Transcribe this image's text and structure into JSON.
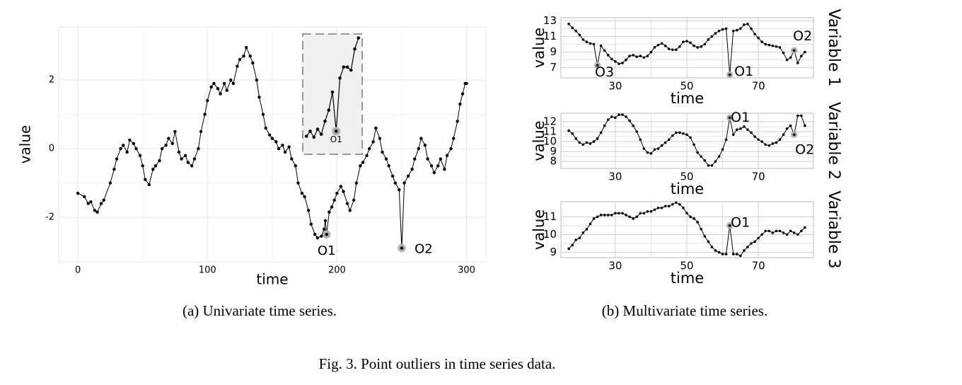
{
  "caption": "Fig. 3.  Point outliers in time series data.",
  "subcaptions": [
    "(a) Univariate time series.",
    "(b) Multivariate time series."
  ],
  "chart_data": [
    {
      "type": "line",
      "x_label": "time",
      "y_label": "value",
      "color": "#000000",
      "outlier_color": "#b0b0b0",
      "xlim": [
        -14.8,
        315
      ],
      "ylim": [
        -3.3,
        3.55
      ],
      "xticks": [
        0,
        100,
        200,
        300
      ],
      "yticks": [
        -2,
        0,
        2
      ],
      "grid": true,
      "x": [
        0,
        5,
        8,
        10,
        13,
        15,
        18,
        20,
        25,
        28,
        30,
        33,
        35,
        38,
        40,
        43,
        45,
        48,
        50,
        52,
        55,
        58,
        60,
        63,
        65,
        68,
        70,
        73,
        75,
        78,
        80,
        83,
        85,
        88,
        90,
        93,
        95,
        98,
        100,
        103,
        105,
        108,
        110,
        113,
        115,
        118,
        120,
        123,
        125,
        128,
        130,
        133,
        135,
        138,
        140,
        143,
        145,
        148,
        150,
        153,
        155,
        158,
        160,
        163,
        165,
        168,
        170,
        173,
        175,
        178,
        180,
        183,
        185,
        188,
        190,
        191,
        192,
        194,
        196,
        198,
        200,
        203,
        205,
        208,
        210,
        213,
        215,
        218,
        220,
        223,
        225,
        228,
        230,
        233,
        235,
        238,
        240,
        243,
        245,
        248,
        250,
        252,
        255,
        258,
        260,
        263,
        265,
        268,
        270,
        273,
        275,
        278,
        280,
        283,
        285,
        288,
        290,
        293,
        295,
        297,
        299,
        300
      ],
      "values": [
        -1.3,
        -1.4,
        -1.6,
        -1.55,
        -1.8,
        -1.85,
        -1.6,
        -1.5,
        -1.0,
        -0.6,
        -0.3,
        0.0,
        0.1,
        -0.1,
        0.25,
        0.15,
        0.0,
        -0.2,
        -0.5,
        -0.9,
        -1.05,
        -0.6,
        -0.5,
        -0.35,
        0.0,
        0.1,
        0.3,
        0.15,
        0.5,
        -0.1,
        -0.3,
        -0.2,
        -0.4,
        -0.5,
        -0.3,
        0.0,
        0.5,
        1.0,
        1.4,
        1.8,
        1.9,
        1.75,
        1.6,
        1.9,
        1.7,
        2.0,
        1.9,
        2.4,
        2.6,
        2.7,
        2.95,
        2.7,
        2.5,
        2.0,
        1.5,
        1.0,
        0.6,
        0.4,
        0.3,
        0.2,
        0.0,
        0.1,
        -0.1,
        0.05,
        -0.3,
        -0.5,
        -1.0,
        -1.3,
        -1.4,
        -1.8,
        -2.2,
        -2.5,
        -2.6,
        -2.55,
        -2.35,
        -2.1,
        -2.5,
        -1.85,
        -1.7,
        -1.5,
        -1.3,
        -1.1,
        -1.25,
        -1.6,
        -1.8,
        -1.5,
        -1.0,
        -0.5,
        -0.4,
        -0.2,
        0.0,
        0.2,
        0.6,
        0.3,
        -0.1,
        -0.3,
        -0.5,
        -0.8,
        -1.0,
        -1.2,
        -2.9,
        -1.0,
        -0.8,
        -0.6,
        -0.3,
        0.0,
        0.3,
        0.1,
        -0.3,
        -0.5,
        -0.7,
        -0.5,
        -0.3,
        -0.6,
        -0.2,
        0.0,
        0.3,
        0.8,
        1.3,
        1.6,
        1.9,
        1.9
      ],
      "annotations": [
        {
          "text": "O1",
          "x": 192
        },
        {
          "text": "O2",
          "x": 250
        }
      ],
      "inset": {
        "xlim": [
          184,
          200
        ],
        "ylim": [
          -2.7,
          -1.5
        ],
        "x": [
          185,
          186,
          187,
          188,
          189,
          190,
          191,
          192,
          193,
          194,
          195,
          196,
          197,
          198,
          199
        ],
        "values": [
          -2.52,
          -2.47,
          -2.53,
          -2.45,
          -2.5,
          -2.37,
          -2.26,
          -2.08,
          -2.47,
          -1.94,
          -1.83,
          -1.83,
          -1.86,
          -1.65,
          -1.54
        ],
        "annotations": [
          {
            "text": "O1",
            "x": 193
          }
        ]
      }
    },
    {
      "type": "line",
      "x_label": "time",
      "y_label": "value",
      "strip_label": "Variable 1",
      "color": "#000000",
      "outlier_color": "#b0b0b0",
      "xlim": [
        14.8,
        85.4
      ],
      "ylim": [
        5.7,
        13.4
      ],
      "xticks": [
        30,
        50,
        70
      ],
      "yticks": [
        7,
        9,
        11,
        13
      ],
      "grid": true,
      "x": [
        17,
        18,
        19,
        20,
        21,
        22,
        23,
        24,
        25,
        26,
        27,
        28,
        29,
        30,
        31,
        32,
        33,
        34,
        35,
        36,
        37,
        38,
        39,
        40,
        41,
        42,
        43,
        44,
        45,
        46,
        47,
        48,
        49,
        50,
        51,
        52,
        53,
        54,
        55,
        56,
        57,
        58,
        59,
        60,
        61,
        62,
        63,
        64,
        65,
        66,
        67,
        68,
        69,
        70,
        71,
        72,
        73,
        74,
        75,
        76,
        77,
        78,
        79,
        80,
        81,
        82,
        83
      ],
      "values": [
        12.6,
        12.1,
        11.7,
        11.2,
        10.6,
        10.3,
        10.1,
        10.0,
        7.3,
        9.8,
        9.2,
        8.6,
        8.1,
        7.8,
        7.5,
        7.6,
        8.0,
        8.5,
        8.6,
        8.4,
        8.5,
        8.3,
        8.5,
        9.0,
        9.6,
        9.9,
        10.1,
        9.8,
        9.4,
        9.3,
        9.3,
        9.7,
        10.3,
        10.4,
        10.2,
        9.8,
        9.6,
        9.7,
        10.0,
        10.6,
        11.0,
        11.4,
        11.7,
        11.9,
        12.0,
        6.1,
        11.7,
        11.8,
        12.0,
        12.5,
        12.6,
        12.0,
        11.3,
        10.8,
        10.3,
        10.0,
        9.9,
        9.8,
        9.7,
        9.6,
        8.9,
        8.0,
        8.3,
        9.2,
        7.6,
        8.5,
        9.0
      ],
      "annotations": [
        {
          "text": "O3",
          "x": 25
        },
        {
          "text": "O1",
          "x": 62
        },
        {
          "text": "O2",
          "x": 80
        }
      ]
    },
    {
      "type": "line",
      "x_label": "time",
      "y_label": "value",
      "strip_label": "Variable 2",
      "color": "#000000",
      "outlier_color": "#b0b0b0",
      "xlim": [
        14.8,
        85.4
      ],
      "ylim": [
        7.3,
        12.85
      ],
      "xticks": [
        30,
        50,
        70
      ],
      "yticks": [
        8,
        9,
        10,
        11,
        12
      ],
      "grid": true,
      "x": [
        17,
        18,
        19,
        20,
        21,
        22,
        23,
        24,
        25,
        26,
        27,
        28,
        29,
        30,
        31,
        32,
        33,
        34,
        35,
        36,
        37,
        38,
        39,
        40,
        41,
        42,
        43,
        44,
        45,
        46,
        47,
        48,
        49,
        50,
        51,
        52,
        53,
        54,
        55,
        56,
        57,
        58,
        59,
        60,
        61,
        62,
        63,
        64,
        65,
        66,
        67,
        68,
        69,
        70,
        71,
        72,
        73,
        74,
        75,
        76,
        77,
        78,
        79,
        80,
        81,
        82,
        83
      ],
      "values": [
        11.1,
        10.8,
        10.3,
        9.9,
        9.7,
        9.9,
        9.8,
        10.0,
        10.3,
        10.9,
        11.6,
        12.2,
        12.5,
        12.4,
        12.7,
        12.7,
        12.5,
        12.1,
        11.6,
        11.0,
        10.2,
        9.3,
        8.9,
        8.8,
        9.2,
        9.3,
        9.6,
        9.9,
        10.2,
        10.6,
        10.9,
        10.9,
        10.8,
        10.7,
        10.4,
        9.7,
        8.9,
        8.5,
        8.1,
        7.6,
        7.6,
        8.0,
        8.5,
        9.2,
        10.2,
        12.4,
        10.7,
        11.2,
        11.3,
        11.5,
        11.2,
        10.9,
        10.5,
        10.2,
        10.0,
        9.7,
        9.6,
        9.8,
        9.9,
        10.2,
        10.7,
        11.3,
        11.6,
        10.7,
        12.6,
        12.6,
        11.6
      ],
      "annotations": [
        {
          "text": "O1",
          "x": 62
        },
        {
          "text": "O2",
          "x": 80
        }
      ]
    },
    {
      "type": "line",
      "x_label": "time",
      "y_label": "value",
      "strip_label": "Variable 3",
      "color": "#000000",
      "outlier_color": "#b0b0b0",
      "xlim": [
        14.8,
        85.4
      ],
      "ylim": [
        8.7,
        11.85
      ],
      "xticks": [
        30,
        50,
        70
      ],
      "yticks": [
        9,
        10,
        11
      ],
      "grid": true,
      "x": [
        17,
        18,
        19,
        20,
        21,
        22,
        23,
        24,
        25,
        26,
        27,
        28,
        29,
        30,
        31,
        32,
        33,
        34,
        35,
        36,
        37,
        38,
        39,
        40,
        41,
        42,
        43,
        44,
        45,
        46,
        47,
        48,
        49,
        50,
        51,
        52,
        53,
        54,
        55,
        56,
        57,
        58,
        59,
        60,
        61,
        62,
        63,
        64,
        65,
        66,
        67,
        68,
        69,
        70,
        71,
        72,
        73,
        74,
        75,
        76,
        77,
        78,
        79,
        80,
        81,
        82,
        83
      ],
      "values": [
        9.2,
        9.4,
        9.7,
        9.8,
        10.1,
        10.3,
        10.6,
        10.9,
        11.0,
        11.1,
        11.1,
        11.1,
        11.1,
        11.2,
        11.2,
        11.2,
        11.1,
        11.0,
        10.9,
        11.0,
        11.2,
        11.2,
        11.3,
        11.3,
        11.4,
        11.5,
        11.5,
        11.6,
        11.6,
        11.7,
        11.8,
        11.7,
        11.5,
        11.2,
        11.0,
        10.9,
        10.7,
        10.3,
        9.9,
        9.6,
        9.3,
        9.1,
        9.0,
        8.9,
        8.9,
        10.5,
        8.9,
        8.9,
        8.8,
        9.1,
        9.3,
        9.5,
        9.6,
        9.8,
        10.0,
        10.2,
        10.2,
        10.1,
        10.2,
        10.2,
        10.1,
        10.0,
        10.2,
        10.1,
        10.0,
        10.2,
        10.4
      ],
      "annotations": [
        {
          "text": "O1",
          "x": 62
        }
      ]
    }
  ]
}
